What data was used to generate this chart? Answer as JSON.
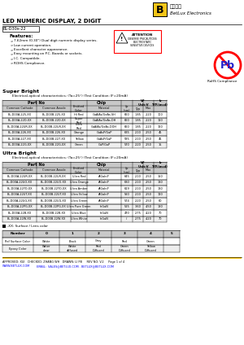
{
  "title": "LED NUMERIC DISPLAY, 2 DIGIT",
  "part_number": "BL-D30x-22",
  "features": [
    "7.62mm (0.30\") Dual digit numeric display series.",
    "Low current operation.",
    "Excellent character appearance.",
    "Easy mounting on P.C. Boards or sockets.",
    "I.C. Compatible.",
    "ROHS Compliance."
  ],
  "super_bright_header": "Super Bright",
  "super_bright_condition": "Electrical-optical characteristics: (Ta=25°) (Test Condition: IF=20mA)",
  "super_bright_rows": [
    [
      "BL-D00A-225-XX",
      "BL-D00B-225-XX",
      "Hi Red",
      "GaAlAs/GaAs.SH",
      "660",
      "1.85",
      "2.20",
      "100"
    ],
    [
      "BL-D00A-22D-XX",
      "BL-D00B-22D-XX",
      "Super\nRed",
      "GaAlAs/GaAs.DH",
      "660",
      "1.85",
      "2.20",
      "110"
    ],
    [
      "BL-D00A-22UR-XX",
      "BL-D00B-22UR-XX",
      "Ultra\nRed",
      "GaAlAs/GaAs.DOH",
      "660",
      "1.85",
      "2.20",
      "160"
    ],
    [
      "BL-D00A-226-XX",
      "BL-D00B-226-XX",
      "Orange",
      "GaAsP/GaP",
      "635",
      "2.10",
      "2.50",
      "45"
    ],
    [
      "BL-D00A-227-XX",
      "BL-D00B-227-XX",
      "Yellow",
      "GaAsP/GaP",
      "585",
      "2.10",
      "2.50",
      "45"
    ],
    [
      "BL-D00A-22G-XX",
      "BL-D00B-22G-XX",
      "Green",
      "GaP/GaP",
      "570",
      "2.20",
      "2.50",
      "15"
    ]
  ],
  "ultra_bright_header": "Ultra Bright",
  "ultra_bright_condition": "Electrical-optical characteristics: (Ta=25°) (Test Condition: IF=20mA)",
  "ultra_bright_rows": [
    [
      "BL-D00A-22UR-XX",
      "BL-D00B-22UR-XX",
      "Ultra Red",
      "AlGaInP",
      "645",
      "2.10",
      "2.50",
      "150"
    ],
    [
      "BL-D00A-22UO-XX",
      "BL-D00B-22UO-XX",
      "Ultra Orange",
      "AlGaInP",
      "630",
      "2.10",
      "2.50",
      "130"
    ],
    [
      "BL-D00A-22YO-XX",
      "BL-D00B-22YO-XX",
      "Ultra Amber",
      "AlGaInP",
      "619",
      "2.10",
      "2.50",
      "130"
    ],
    [
      "BL-D00A-22UT-XX",
      "BL-D00B-22UT-XX",
      "Ultra Yellow",
      "AlGaInP",
      "590",
      "2.10",
      "2.50",
      "120"
    ],
    [
      "BL-D00A-22UG-XX",
      "BL-D00B-22UG-XX",
      "Ultra Green",
      "AlGaInP",
      "574",
      "2.20",
      "2.50",
      "60"
    ],
    [
      "BL-D00A-22PG-XX",
      "BL-D00B-22PG-XX",
      "Ultra Pure Green",
      "InGaN",
      "525",
      "3.60",
      "4.50",
      "180"
    ],
    [
      "BL-D00A-22B-XX",
      "BL-D00B-22B-XX",
      "Ultra Blue",
      "InGaN",
      "470",
      "2.75",
      "4.20",
      "70"
    ],
    [
      "BL-D00A-22W-XX",
      "BL-D00B-22W-XX",
      "Ultra White",
      "InGaN",
      "/",
      "2.75",
      "4.20",
      "70"
    ]
  ],
  "note": "-XX: Surface / Lens color",
  "color_table_cols": [
    "Number",
    "0",
    "1",
    "2",
    "3",
    "4",
    "5"
  ],
  "color_table_rows": [
    [
      "Ref Surface Color",
      "White",
      "Black",
      "Gray",
      "Red",
      "Green",
      ""
    ],
    [
      "Epoxy Color",
      "Water\nclear",
      "White\ndiffused",
      "Red\nDiffused",
      "Green\nDiffused",
      "Yellow\nDiffused",
      ""
    ]
  ],
  "footer": "APPROVED: XUI   CHECKED: ZHANG WH   DRAWN: LI PB     REV NO: V.2     Page 1 of 4",
  "website": "WWW.BETLUX.COM",
  "email": "EMAIL:  SALES@BETLUX.COM . BETLUX@BETLUX.COM",
  "bg_color": "#ffffff",
  "header_bg": "#c8c8c8"
}
